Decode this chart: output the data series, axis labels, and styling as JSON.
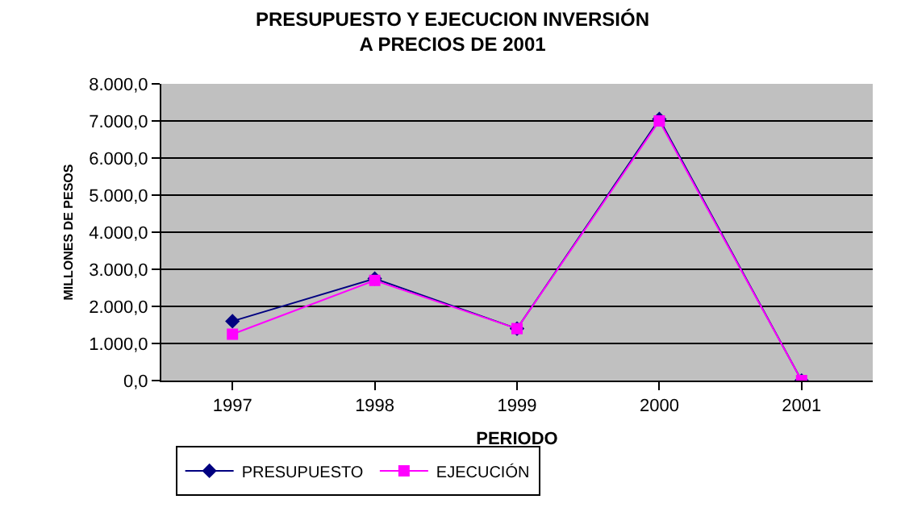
{
  "chart_data": {
    "type": "line",
    "title": "PRESUPUESTO Y EJECUCION INVERSIÓN\nA PRECIOS DE 2001",
    "xlabel": "PERIODO",
    "ylabel": "MILLONES DE PESOS",
    "categories": [
      "1997",
      "1998",
      "1999",
      "2000",
      "2001"
    ],
    "series": [
      {
        "name": "PRESUPUESTO",
        "color": "#000080",
        "marker": "diamond",
        "values": [
          1600,
          2750,
          1400,
          7050,
          0
        ]
      },
      {
        "name": "EJECUCIÓN",
        "color": "#ff00ff",
        "marker": "square",
        "values": [
          1250,
          2700,
          1400,
          7000,
          0
        ]
      }
    ],
    "ylim": [
      0,
      8000
    ],
    "yticks": [
      {
        "value": 0,
        "label": "0,0"
      },
      {
        "value": 1000,
        "label": "1.000,0"
      },
      {
        "value": 2000,
        "label": "2.000,0"
      },
      {
        "value": 3000,
        "label": "3.000,0"
      },
      {
        "value": 4000,
        "label": "4.000,0"
      },
      {
        "value": 5000,
        "label": "5.000,0"
      },
      {
        "value": 6000,
        "label": "6.000,0"
      },
      {
        "value": 7000,
        "label": "7.000,0"
      },
      {
        "value": 8000,
        "label": "8.000,0"
      }
    ],
    "grid": "y",
    "legend": "bottom left"
  }
}
